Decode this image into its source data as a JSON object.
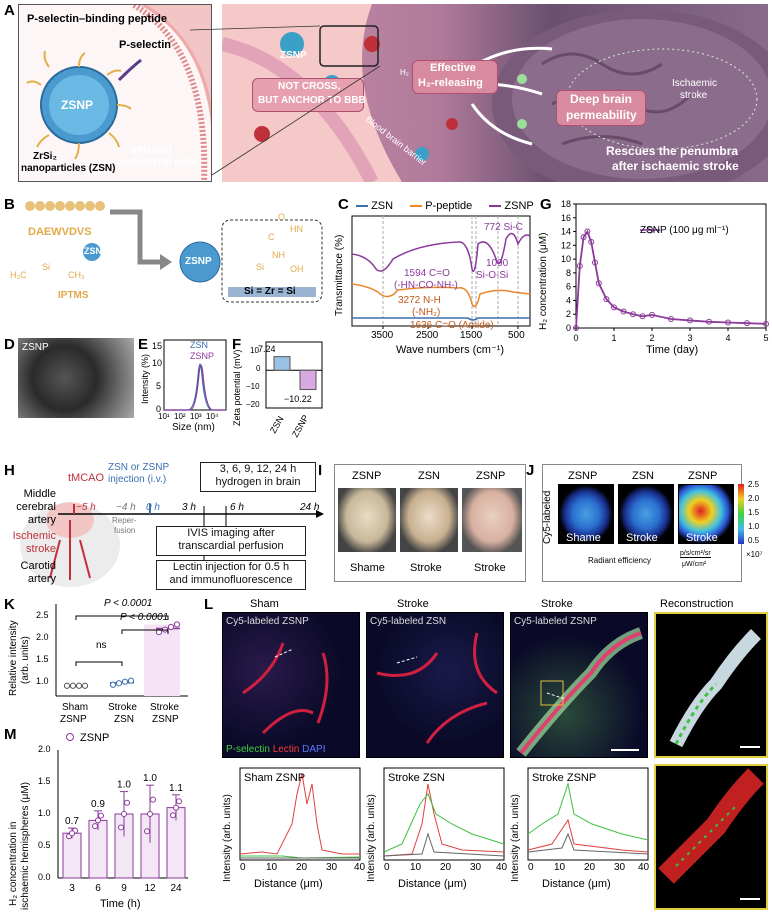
{
  "panel_letters": {
    "A": "A",
    "B": "B",
    "C": "C",
    "D": "D",
    "E": "E",
    "F": "F",
    "G": "G",
    "H": "H",
    "I": "I",
    "J": "J",
    "K": "K",
    "L": "L",
    "M": "M"
  },
  "panel_a": {
    "peptide_label": "P-selectin–binding peptide",
    "pselectin_label": "P-selectin",
    "zsnp": "ZSNP",
    "zsn_label1": "ZrSi₂",
    "zsn_label2": "nanoparticles (ZSN)",
    "inflamed1": "Inflamed",
    "inflamed2": "endothelial cells",
    "zsnp_vessel": "ZSNP",
    "not_cross1": "NOT CROSS,",
    "not_cross2": "BUT ANCHOR TO BBB",
    "effective1": "Effective",
    "effective2": "H₂-releasing",
    "deep1": "Deep brain",
    "deep2": "permeability",
    "ischaemic1": "Ischaemic",
    "ischaemic2": "stroke",
    "bbb": "Blood brain barrier",
    "rescue1": "Rescues the penumbra",
    "rescue2": "after ischaemic stroke",
    "h2": "H₂"
  },
  "panel_b": {
    "peptide": "DAEWVDVS",
    "zsn": "ZSN",
    "zsnp": "ZSNP",
    "iptms": "IPTMS",
    "sizr": "Si = Zr = Si",
    "o": "O",
    "si": "Si",
    "oh": "OH",
    "nh": "NH",
    "hn": "HN",
    "c": "C",
    "ch3": "CH₃",
    "h3c": "H₃C"
  },
  "panel_c": {
    "legend": [
      "ZSN",
      "P-peptide",
      "ZSNP"
    ],
    "colors": [
      "#3a6fb0",
      "#e8882a",
      "#8b3a9a"
    ],
    "ylabel": "Transmittance (%)",
    "xlabel": "Wave numbers (cm⁻¹)",
    "xticks": [
      "3500",
      "2500",
      "1500",
      "500"
    ],
    "ann1": "772 Si-C",
    "ann2a": "1090",
    "ann2b": "Si-O-Si",
    "ann3a": "1594 C=O",
    "ann3b": "(-HN-CO-NH-)",
    "ann4a": "3272 N-H",
    "ann4b": "(-NH₂)",
    "ann5": "1636 C=O (Amide)"
  },
  "panel_d": {
    "label": "ZSNP"
  },
  "panel_e": {
    "legend": [
      "ZSN",
      "ZSNP"
    ],
    "ylabel": "Intensity (%)",
    "xlabel": "Size (nm)",
    "yticks": [
      "0",
      "5",
      "10",
      "15"
    ],
    "xticks": [
      "10¹",
      "10²",
      "10³",
      "10⁴"
    ]
  },
  "panel_f": {
    "ylabel": "Zeta potential (mV)",
    "yticks": [
      "10",
      "0",
      "−10",
      "−20"
    ],
    "categories": [
      "ZSN",
      "ZSNP"
    ],
    "values_text": [
      "7.24",
      "−10.22"
    ]
  },
  "panel_h": {
    "tmcao": "tMCAO",
    "injection1": "ZSN or ZSNP",
    "injection2": "injection (i.v.)",
    "minus5": "−5 h",
    "minus4": "−4 h",
    "zero": "0 h",
    "three": "3 h",
    "six": "6 h",
    "twentyfour": "24 h",
    "reperfusion1": "Reper-",
    "reperfusion2": "fusion",
    "timepoints1": "3, 6, 9, 12, 24 h",
    "timepoints2": "hydrogen in brain",
    "ivis1": "IVIS imaging after",
    "ivis2": "transcardial perfusion",
    "lectin1": "Lectin injection for 0.5 h",
    "lectin2": "and immunofluorescence",
    "mca1": "Middle",
    "mca2": "cerebral",
    "mca3": "artery",
    "isch1": "Ischemic",
    "isch2": "stroke",
    "carotid1": "Carotid",
    "carotid2": "artery"
  },
  "panel_i": {
    "top": [
      "ZSNP",
      "ZSN",
      "ZSNP"
    ],
    "bottom": [
      "Shame",
      "Stroke",
      "Stroke"
    ]
  },
  "panel_j": {
    "top": [
      "ZSNP",
      "ZSN",
      "ZSNP"
    ],
    "bottom": [
      "Shame",
      "Stroke",
      "Stroke"
    ],
    "side": "Cy5-labeled",
    "scale": [
      "2.5",
      "2.0",
      "1.5",
      "1.0",
      "0.5"
    ],
    "scale_exp": "×10⁷",
    "radiant": "Radiant efficiency",
    "unit_top": "p/s/cm²/sr",
    "unit_bottom": "μW/cm²"
  },
  "panel_k": {
    "ylabel1": "Relative intensity",
    "ylabel2": "(arb. units)",
    "yticks": [
      "1.0",
      "1.5",
      "2.0",
      "2.5"
    ],
    "categories": [
      [
        "Sham",
        "ZSNP"
      ],
      [
        "Stroke",
        "ZSN"
      ],
      [
        "Stroke",
        "ZSNP"
      ]
    ],
    "p1": "P < 0.0001",
    "p2": "P < 0.0001",
    "ns": "ns"
  },
  "panel_l": {
    "titles": [
      "Sham",
      "Stroke",
      "Stroke",
      "Reconstruction"
    ],
    "img_labels": [
      "Cy5-labeled ZSNP",
      "Cy5-labeled ZSN",
      "Cy5-labeled ZSNP"
    ],
    "stain_p": "P-selectin",
    "stain_l": "Lectin",
    "stain_d": "DAPI",
    "plot_titles": [
      "Sham ZSNP",
      "Stroke ZSN",
      "Stroke ZSNP"
    ],
    "ylabel": "Intensity (arb. units)",
    "xlabel": "Distance (μm)",
    "xticks": [
      "0",
      "10",
      "20",
      "30",
      "40"
    ]
  },
  "panel_m": {
    "legend": "ZSNP",
    "ylabel1": "H₂ concentration in",
    "ylabel2": "ischaemic hemispheres (μM)",
    "xlabel": "Time (h)",
    "yticks": [
      "0.0",
      "0.5",
      "1.0",
      "1.5",
      "2.0"
    ]
  },
  "chart_data": [
    {
      "type": "line",
      "panel": "G",
      "title": "",
      "legend": "ZSNP (100 μg ml⁻¹)",
      "xlabel": "Time (day)",
      "ylabel": "H₂ concentration (μM)",
      "xlim": [
        0,
        5
      ],
      "ylim": [
        0,
        18
      ],
      "xticks": [
        "0",
        "1",
        "2",
        "3",
        "4",
        "5"
      ],
      "yticks": [
        "0",
        "2",
        "4",
        "6",
        "8",
        "10",
        "12",
        "14",
        "16",
        "18"
      ],
      "x": [
        0,
        0.1,
        0.2,
        0.3,
        0.4,
        0.5,
        0.6,
        0.8,
        1.0,
        1.25,
        1.5,
        1.75,
        2.0,
        2.5,
        3.0,
        3.5,
        4.0,
        4.5,
        5.0
      ],
      "y": [
        0,
        9,
        13.2,
        14.0,
        12.5,
        9.5,
        6.5,
        4.2,
        3.0,
        2.4,
        2.0,
        1.7,
        1.9,
        1.3,
        1.1,
        0.9,
        0.8,
        0.7,
        0.6
      ],
      "color": "#8b3a9a"
    },
    {
      "type": "bar",
      "panel": "F",
      "categories": [
        "ZSN",
        "ZSNP"
      ],
      "values": [
        7.24,
        -10.22
      ],
      "ylabel": "Zeta potential (mV)",
      "ylim": [
        -20,
        15
      ]
    },
    {
      "type": "scatter",
      "panel": "K",
      "categories": [
        "Sham ZSNP",
        "Stroke ZSN",
        "Stroke ZSNP"
      ],
      "means": [
        1.0,
        1.06,
        2.12
      ],
      "points": [
        [
          1.0,
          1.0,
          1.0,
          1.0
        ],
        [
          1.02,
          1.05,
          1.08,
          1.1
        ],
        [
          2.05,
          2.1,
          2.15,
          2.2
        ]
      ],
      "ylabel": "Relative intensity (arb. units)",
      "ylim": [
        0.8,
        2.6
      ]
    },
    {
      "type": "bar",
      "panel": "M",
      "categories": [
        "3",
        "6",
        "9",
        "12",
        "24"
      ],
      "values": [
        0.7,
        0.9,
        1.0,
        1.0,
        1.1
      ],
      "value_labels": [
        "0.7",
        "0.9",
        "1.0",
        "1.0",
        "1.1"
      ],
      "errors": [
        0.08,
        0.15,
        0.35,
        0.45,
        0.2
      ],
      "xlabel": "Time (h)",
      "ylabel": "H₂ concentration in ischaemic hemispheres (μM)",
      "ylim": [
        0,
        2.0
      ]
    }
  ]
}
